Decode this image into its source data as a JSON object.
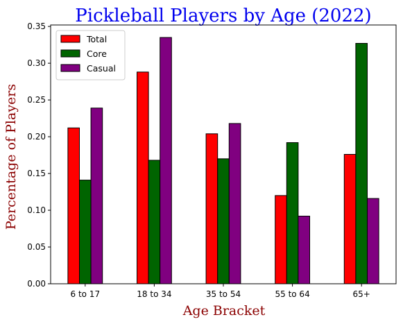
{
  "chart_data": {
    "type": "bar",
    "title": "Pickleball Players by Age (2022)",
    "xlabel": "Age Bracket",
    "ylabel": "Percentage of Players",
    "categories": [
      "6 to 17",
      "18 to 34",
      "35 to 54",
      "55 to 64",
      "65+"
    ],
    "series": [
      {
        "name": "Total",
        "color": "#ff0000",
        "values": [
          0.212,
          0.288,
          0.204,
          0.12,
          0.176
        ]
      },
      {
        "name": "Core",
        "color": "#006400",
        "values": [
          0.141,
          0.168,
          0.17,
          0.192,
          0.327
        ]
      },
      {
        "name": "Casual",
        "color": "#800080",
        "values": [
          0.239,
          0.335,
          0.218,
          0.092,
          0.116
        ]
      }
    ],
    "ylim": [
      0,
      0.352
    ],
    "yticks": [
      0.0,
      0.05,
      0.1,
      0.15,
      0.2,
      0.25,
      0.3,
      0.35
    ],
    "ytick_labels": [
      "0.00",
      "0.05",
      "0.10",
      "0.15",
      "0.20",
      "0.25",
      "0.30",
      "0.35"
    ],
    "grid": false,
    "legend_position": "top-left",
    "colors": {
      "title": "#0000ee",
      "axis_label": "#8b0000",
      "bar_edge": "#000000"
    }
  }
}
